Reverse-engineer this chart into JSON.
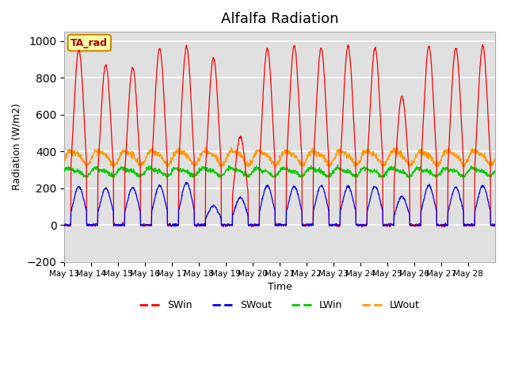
{
  "title": "Alfalfa Radiation",
  "ylabel": "Radiation (W/m2)",
  "xlabel": "Time",
  "ylim": [
    -200,
    1050
  ],
  "yticks": [
    -200,
    0,
    200,
    400,
    600,
    800,
    1000
  ],
  "xtick_labels": [
    "May 13",
    "May 14",
    "May 15",
    "May 16",
    "May 17",
    "May 18",
    "May 19",
    "May 20",
    "May 21",
    "May 22",
    "May 23",
    "May 24",
    "May 25",
    "May 26",
    "May 27",
    "May 28"
  ],
  "legend_labels": [
    "SWin",
    "SWout",
    "LWin",
    "LWout"
  ],
  "legend_colors": [
    "#ff0000",
    "#0000ff",
    "#00cc00",
    "#ff9900"
  ],
  "ta_rad_label": "TA_rad",
  "plot_bg_color": "#e0e0e0",
  "grid_color": "#ffffff",
  "peaks_SWin": [
    950,
    870,
    855,
    960,
    970,
    910,
    480,
    960,
    970,
    960,
    970,
    960,
    700,
    970,
    960,
    970
  ],
  "peaks_SWout": [
    210,
    200,
    205,
    215,
    230,
    105,
    150,
    215,
    210,
    215,
    210,
    210,
    155,
    215,
    205,
    215
  ],
  "LWin_base": 290,
  "LWout_base": 370,
  "n_points_per_day": 96
}
